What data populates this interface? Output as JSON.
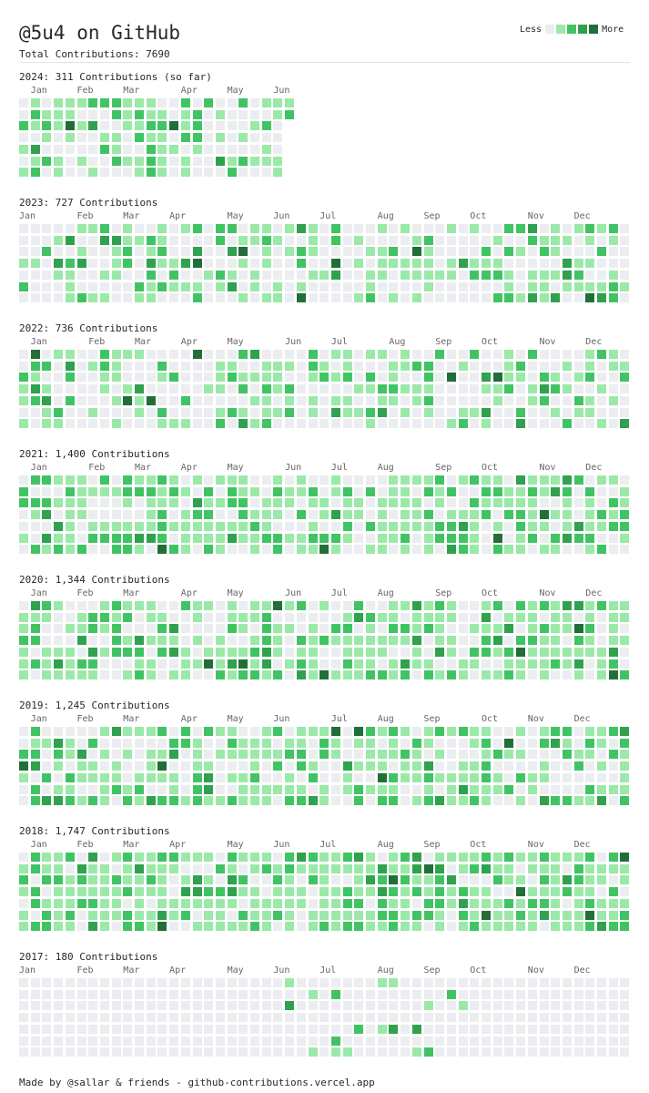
{
  "header": {
    "title": "@5u4 on GitHub",
    "total": "Total Contributions: 7690"
  },
  "legend": {
    "less": "Less",
    "more": "More"
  },
  "palette": [
    "#ebedf0",
    "#9be9a8",
    "#40c463",
    "#30a14e",
    "#216e39"
  ],
  "years": [
    {
      "label": "2024: 311 Contributions (so far)",
      "months": [
        "Jan",
        "Feb",
        "Mar",
        "Apr",
        "May",
        "Jun"
      ],
      "month_weeks": [
        1,
        5,
        9,
        14,
        18,
        22
      ]
    },
    {
      "label": "2023: 727 Contributions",
      "months": [
        "Jan",
        "Feb",
        "Mar",
        "Apr",
        "May",
        "Jun",
        "Jul",
        "Aug",
        "Sep",
        "Oct",
        "Nov",
        "Dec"
      ],
      "month_weeks": [
        0,
        5,
        9,
        13,
        18,
        22,
        26,
        31,
        35,
        39,
        44,
        48
      ]
    },
    {
      "label": "2022: 736 Contributions",
      "months": [
        "Jan",
        "Feb",
        "Mar",
        "Apr",
        "May",
        "Jun",
        "Jul",
        "Aug",
        "Sep",
        "Oct",
        "Nov",
        "Dec"
      ],
      "month_weeks": [
        1,
        6,
        10,
        14,
        18,
        23,
        27,
        32,
        36,
        40,
        45,
        49
      ]
    },
    {
      "label": "2021: 1,400 Contributions",
      "months": [
        "Jan",
        "Feb",
        "Mar",
        "Apr",
        "May",
        "Jun",
        "Jul",
        "Aug",
        "Sep",
        "Oct",
        "Nov",
        "Dec"
      ],
      "month_weeks": [
        1,
        6,
        10,
        14,
        18,
        23,
        27,
        31,
        36,
        40,
        45,
        49
      ]
    },
    {
      "label": "2020: 1,344 Contributions",
      "months": [
        "Jan",
        "Feb",
        "Mar",
        "Apr",
        "May",
        "Jun",
        "Jul",
        "Aug",
        "Sep",
        "Oct",
        "Nov",
        "Dec"
      ],
      "month_weeks": [
        1,
        5,
        9,
        14,
        18,
        23,
        27,
        31,
        36,
        40,
        45,
        49
      ]
    },
    {
      "label": "2019: 1,245 Contributions",
      "months": [
        "Jan",
        "Feb",
        "Mar",
        "Apr",
        "May",
        "Jun",
        "Jul",
        "Aug",
        "Sep",
        "Oct",
        "Nov",
        "Dec"
      ],
      "month_weeks": [
        1,
        5,
        9,
        14,
        18,
        22,
        27,
        31,
        35,
        40,
        44,
        48
      ]
    },
    {
      "label": "2018: 1,747 Contributions",
      "months": [
        "Jan",
        "Feb",
        "Mar",
        "Apr",
        "May",
        "Jun",
        "Jul",
        "Aug",
        "Sep",
        "Oct",
        "Nov",
        "Dec"
      ],
      "month_weeks": [
        1,
        5,
        9,
        13,
        18,
        22,
        26,
        31,
        35,
        39,
        44,
        48
      ]
    },
    {
      "label": "2017: 180 Contributions",
      "months": [
        "Jan",
        "Feb",
        "Mar",
        "Apr",
        "May",
        "Jun",
        "Jul",
        "Aug",
        "Sep",
        "Oct",
        "Nov",
        "Dec"
      ],
      "month_weeks": [
        0,
        5,
        9,
        13,
        18,
        22,
        26,
        31,
        35,
        39,
        44,
        48
      ]
    }
  ],
  "footer": "Made by @sallar & friends - github-contributions.vercel.app"
}
